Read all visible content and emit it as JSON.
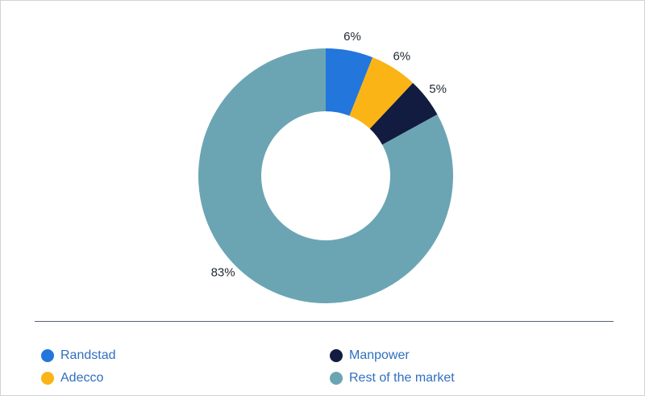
{
  "chart_data": {
    "type": "pie",
    "donut": true,
    "categories": [
      "Randstad",
      "Adecco",
      "Manpower",
      "Rest of the market"
    ],
    "values": [
      6,
      6,
      5,
      83
    ],
    "value_labels": [
      "6%",
      "6%",
      "5%",
      "83%"
    ],
    "colors": [
      "#2276dc",
      "#fbb416",
      "#121c40",
      "#6ba5b3"
    ],
    "legend_position": "bottom",
    "title": "",
    "xlabel": "",
    "ylabel": ""
  },
  "legend": [
    {
      "label": "Randstad",
      "color": "#2276dc"
    },
    {
      "label": "Adecco",
      "color": "#fbb416"
    },
    {
      "label": "Manpower",
      "color": "#121c40"
    },
    {
      "label": "Rest of the market",
      "color": "#6ba5b3"
    }
  ]
}
